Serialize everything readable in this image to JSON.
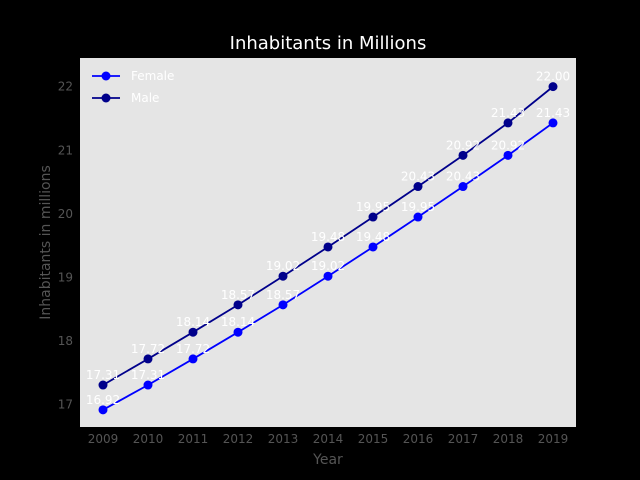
{
  "chart_data": {
    "type": "line",
    "title": "Inhabitants in Millions",
    "xlabel": "Year",
    "ylabel": "Inhabitants in millions",
    "categories": [
      "2009",
      "2010",
      "2011",
      "2012",
      "2013",
      "2014",
      "2015",
      "2016",
      "2017",
      "2018",
      "2019"
    ],
    "ylim": [
      16.65,
      22.45
    ],
    "yticks": [
      17,
      18,
      19,
      20,
      21,
      22
    ],
    "grid": false,
    "legend_position": "top-left",
    "background_color": "#e5e5e5",
    "series": [
      {
        "name": "Female",
        "color": "#0000ff",
        "values": [
          16.92,
          17.31,
          17.72,
          18.14,
          18.57,
          19.02,
          19.48,
          19.95,
          20.43,
          20.92,
          21.43
        ],
        "labels": [
          "16.92",
          "17.31",
          "17.72",
          "18.14",
          "18.57",
          "19.02",
          "19.48",
          "19.95",
          "20.43",
          "20.92",
          "21.43"
        ]
      },
      {
        "name": "Male",
        "color": "#00008b",
        "values": [
          17.31,
          17.72,
          18.14,
          18.57,
          19.02,
          19.48,
          19.95,
          20.43,
          20.92,
          21.43,
          22.0
        ],
        "labels": [
          "17.31",
          "17.72",
          "18.14",
          "18.57",
          "19.02",
          "19.48",
          "19.95",
          "20.43",
          "20.92",
          "21.43",
          "22.00"
        ]
      }
    ]
  }
}
